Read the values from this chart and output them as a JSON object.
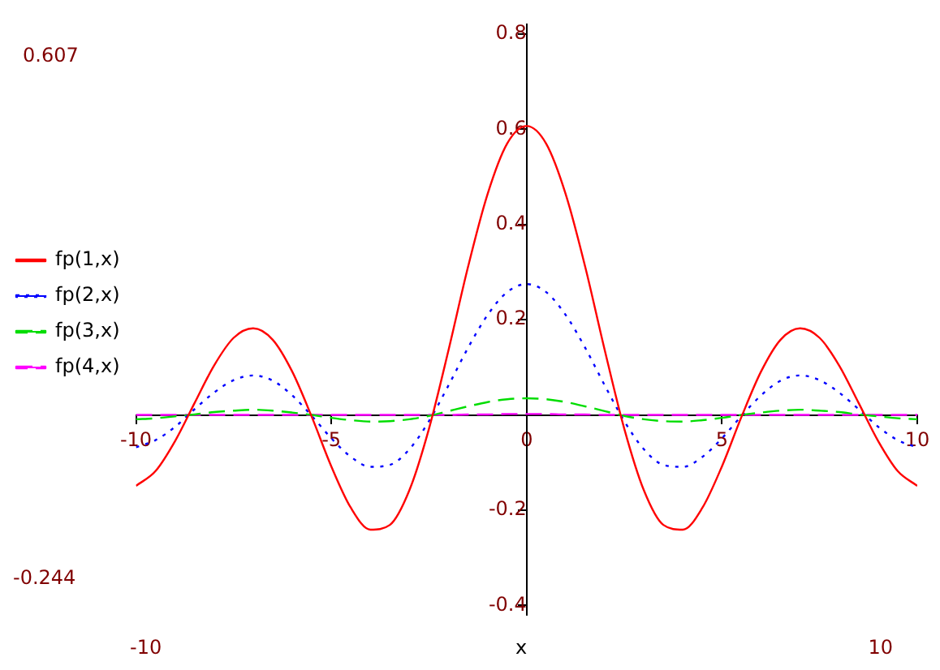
{
  "chart_data": {
    "type": "line",
    "xlabel": "x",
    "x": [
      -10,
      -9.5,
      -9,
      -8.5,
      -8,
      -7.5,
      -7,
      -6.5,
      -6,
      -5.5,
      -5,
      -4.5,
      -4,
      -3.5,
      -3,
      -2.5,
      -2,
      -1.5,
      -1,
      -0.5,
      0,
      0.5,
      1,
      1.5,
      2,
      2.5,
      3,
      3.5,
      4,
      4.5,
      5,
      5.5,
      6,
      6.5,
      7,
      7.5,
      8,
      8.5,
      9,
      9.5,
      10
    ],
    "series": [
      {
        "name": "fp(1,x)",
        "color": "#ff0000",
        "line_style": "solid",
        "values": [
          -0.149,
          -0.118,
          -0.055,
          0.025,
          0.104,
          0.162,
          0.182,
          0.158,
          0.091,
          -0.004,
          -0.108,
          -0.195,
          -0.241,
          -0.231,
          -0.158,
          -0.029,
          0.136,
          0.311,
          0.464,
          0.57,
          0.607,
          0.57,
          0.464,
          0.311,
          0.136,
          -0.029,
          -0.158,
          -0.231,
          -0.241,
          -0.195,
          -0.108,
          -0.004,
          0.091,
          0.158,
          0.182,
          0.162,
          0.104,
          0.025,
          -0.055,
          -0.118,
          -0.149
        ]
      },
      {
        "name": "fp(2,x)",
        "color": "#0000ff",
        "line_style": "dotted",
        "values": [
          -0.068,
          -0.053,
          -0.025,
          0.012,
          0.047,
          0.073,
          0.083,
          0.072,
          0.041,
          -0.002,
          -0.049,
          -0.088,
          -0.109,
          -0.105,
          -0.072,
          -0.013,
          0.062,
          0.141,
          0.21,
          0.258,
          0.275,
          0.258,
          0.21,
          0.141,
          0.062,
          -0.013,
          -0.072,
          -0.105,
          -0.109,
          -0.088,
          -0.049,
          -0.002,
          0.041,
          0.072,
          0.083,
          0.073,
          0.047,
          0.012,
          -0.025,
          -0.053,
          -0.068
        ]
      },
      {
        "name": "fp(3,x)",
        "color": "#00dd00",
        "line_style": "dashed",
        "values": [
          -0.009,
          -0.007,
          -0.003,
          0.001,
          0.006,
          0.009,
          0.011,
          0.009,
          0.005,
          0,
          -0.006,
          -0.011,
          -0.014,
          -0.013,
          -0.009,
          -0.002,
          0.008,
          0.018,
          0.027,
          0.033,
          0.035,
          0.033,
          0.027,
          0.018,
          0.008,
          -0.002,
          -0.009,
          -0.013,
          -0.014,
          -0.011,
          -0.006,
          0,
          0.005,
          0.009,
          0.011,
          0.009,
          0.006,
          0.001,
          -0.003,
          -0.007,
          -0.009
        ]
      },
      {
        "name": "fp(4,x)",
        "color": "#ff00ff",
        "line_style": "dashed",
        "values": [
          0,
          0,
          0,
          0,
          0,
          0,
          0,
          0,
          0,
          0,
          0,
          0,
          0,
          0,
          0,
          0,
          0,
          0.001,
          0.001,
          0.002,
          0.002,
          0.002,
          0.001,
          0.001,
          0,
          0,
          0,
          0,
          0,
          0,
          0,
          0,
          0,
          0,
          0,
          0,
          0,
          0,
          0,
          0,
          0
        ]
      }
    ],
    "xlim": [
      -10,
      10
    ],
    "ylim": [
      -0.42,
      0.82
    ],
    "xticks": [
      -10,
      -5,
      0,
      5,
      10
    ],
    "yticks": [
      -0.4,
      -0.2,
      {
        "value": 0,
        "label": null
      },
      0.2,
      0.4,
      0.6,
      0.8
    ],
    "grid": false,
    "legend": "left",
    "marker": "none",
    "annotations": [
      "0.607",
      "-0.244",
      "-10",
      "10"
    ]
  }
}
